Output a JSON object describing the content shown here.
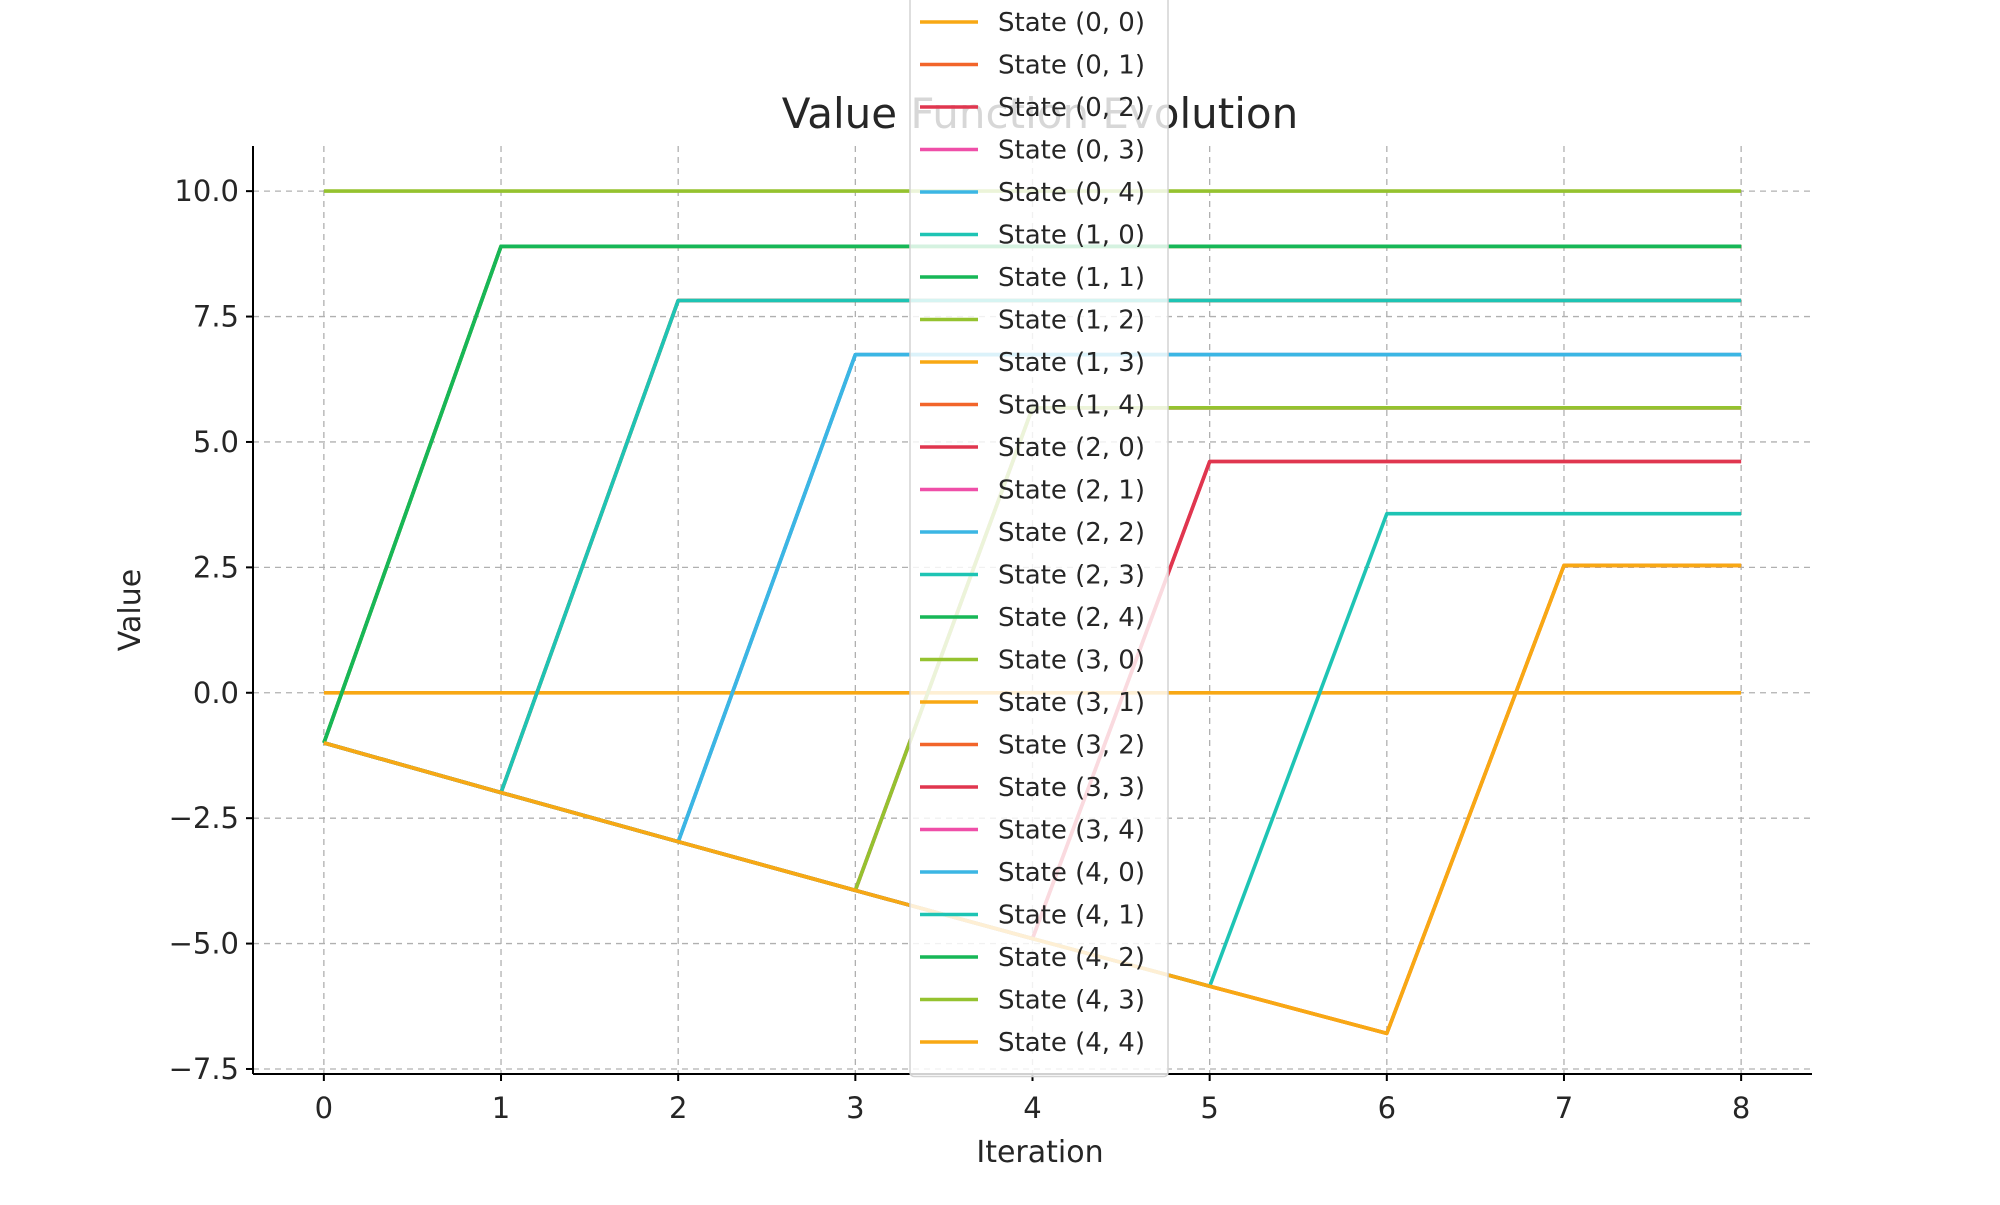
{
  "chart_data": {
    "type": "line",
    "title": "Value Function Evolution",
    "xlabel": "Iteration",
    "ylabel": "Value",
    "xlim": [
      -0.4,
      8.4
    ],
    "ylim": [
      -7.6,
      10.9
    ],
    "xticks": [
      0,
      1,
      2,
      3,
      4,
      5,
      6,
      7,
      8
    ],
    "xtick_labels": [
      "0",
      "1",
      "2",
      "3",
      "4",
      "5",
      "6",
      "7",
      "8"
    ],
    "yticks": [
      -7.5,
      -5.0,
      -2.5,
      0.0,
      2.5,
      5.0,
      7.5,
      10.0
    ],
    "ytick_labels": [
      "−7.5",
      "−5.0",
      "−2.5",
      "0.0",
      "2.5",
      "5.0",
      "7.5",
      "10.0"
    ],
    "grid": true,
    "legend_position": "upper-center",
    "x": [
      0,
      1,
      2,
      3,
      4,
      5,
      6,
      7,
      8
    ],
    "series": [
      {
        "name": "State (0, 0)",
        "color": "#f8a814",
        "values": [
          0,
          0,
          0,
          0,
          0,
          0,
          0,
          0,
          0
        ]
      },
      {
        "name": "State (0, 1)",
        "color": "#f2652a",
        "values": [
          -1,
          8.9,
          8.9,
          8.9,
          8.9,
          8.9,
          8.9,
          8.9,
          8.9
        ]
      },
      {
        "name": "State (0, 2)",
        "color": "#e0364f",
        "values": [
          -1,
          -1.99,
          7.82,
          7.82,
          7.82,
          7.82,
          7.82,
          7.82,
          7.82
        ]
      },
      {
        "name": "State (0, 3)",
        "color": "#ef4fa8",
        "values": [
          -1,
          -1.99,
          -2.97,
          6.74,
          6.74,
          6.74,
          6.74,
          6.74,
          6.74
        ]
      },
      {
        "name": "State (0, 4)",
        "color": "#3bb6e4",
        "values": [
          -1,
          -1.99,
          -2.97,
          6.74,
          6.74,
          6.74,
          6.74,
          6.74,
          6.74
        ]
      },
      {
        "name": "State (1, 0)",
        "color": "#1ec4b4",
        "values": [
          -1,
          -1.99,
          7.82,
          7.82,
          7.82,
          7.82,
          7.82,
          7.82,
          7.82
        ]
      },
      {
        "name": "State (1, 1)",
        "color": "#17b757",
        "values": [
          -1,
          8.9,
          8.9,
          8.9,
          8.9,
          8.9,
          8.9,
          8.9,
          8.9
        ]
      },
      {
        "name": "State (1, 2)",
        "color": "#95c22f",
        "values": [
          10,
          10,
          10,
          10,
          10,
          10,
          10,
          10,
          10
        ]
      },
      {
        "name": "State (1, 3)",
        "color": "#f8a814",
        "values": [
          -1,
          8.9,
          8.9,
          8.9,
          8.9,
          8.9,
          8.9,
          8.9,
          8.9
        ]
      },
      {
        "name": "State (1, 4)",
        "color": "#f2652a",
        "values": [
          -1,
          -1.99,
          7.82,
          7.82,
          7.82,
          7.82,
          7.82,
          7.82,
          7.82
        ]
      },
      {
        "name": "State (2, 0)",
        "color": "#e0364f",
        "values": [
          -1,
          -1.99,
          -2.97,
          -3.94,
          -4.9,
          4.61,
          4.61,
          4.61,
          4.61
        ]
      },
      {
        "name": "State (2, 1)",
        "color": "#ef4fa8",
        "values": [
          -1,
          -1.99,
          -2.97,
          -3.94,
          5.68,
          5.68,
          5.68,
          5.68,
          5.68
        ]
      },
      {
        "name": "State (2, 2)",
        "color": "#3bb6e4",
        "values": [
          -1,
          -1.99,
          -2.97,
          6.74,
          6.74,
          6.74,
          6.74,
          6.74,
          6.74
        ]
      },
      {
        "name": "State (2, 3)",
        "color": "#1ec4b4",
        "values": [
          -1,
          -1.99,
          7.82,
          7.82,
          7.82,
          7.82,
          7.82,
          7.82,
          7.82
        ]
      },
      {
        "name": "State (2, 4)",
        "color": "#17b757",
        "values": [
          -1,
          8.9,
          8.9,
          8.9,
          8.9,
          8.9,
          8.9,
          8.9,
          8.9
        ]
      },
      {
        "name": "State (3, 0)",
        "color": "#95c22f",
        "values": [
          -1,
          -1.99,
          -2.97,
          -3.94,
          5.68,
          5.68,
          5.68,
          5.68,
          5.68
        ]
      },
      {
        "name": "State (3, 1)",
        "color": "#f8a814",
        "values": [
          -1,
          -1.99,
          -2.97,
          -3.94,
          -4.9,
          -5.85,
          -6.79,
          2.54,
          2.54
        ]
      },
      {
        "name": "State (3, 2)",
        "color": "#f2652a",
        "values": [
          -1,
          -1.99,
          -2.97,
          -3.94,
          -4.9,
          -5.85,
          -6.79,
          2.54,
          2.54
        ]
      },
      {
        "name": "State (3, 3)",
        "color": "#e0364f",
        "values": [
          -1,
          -1.99,
          -2.97,
          -3.94,
          -4.9,
          4.61,
          4.61,
          4.61,
          4.61
        ]
      },
      {
        "name": "State (3, 4)",
        "color": "#ef4fa8",
        "values": [
          -1,
          -1.99,
          -2.97,
          -3.94,
          5.68,
          5.68,
          5.68,
          5.68,
          5.68
        ]
      },
      {
        "name": "State (4, 0)",
        "color": "#3bb6e4",
        "values": [
          -1,
          -1.99,
          -2.97,
          6.74,
          6.74,
          6.74,
          6.74,
          6.74,
          6.74
        ]
      },
      {
        "name": "State (4, 1)",
        "color": "#1ec4b4",
        "values": [
          -1,
          -1.99,
          -2.97,
          -3.94,
          -4.9,
          -5.85,
          3.57,
          3.57,
          3.57
        ]
      },
      {
        "name": "State (4, 2)",
        "color": "#17b757",
        "values": [
          -1,
          8.9,
          8.9,
          8.9,
          8.9,
          8.9,
          8.9,
          8.9,
          8.9
        ]
      },
      {
        "name": "State (4, 3)",
        "color": "#95c22f",
        "values": [
          -1,
          -1.99,
          -2.97,
          -3.94,
          5.68,
          5.68,
          5.68,
          5.68,
          5.68
        ]
      },
      {
        "name": "State (4, 4)",
        "color": "#f8a814",
        "values": [
          -1,
          -1.99,
          -2.97,
          -3.94,
          -4.9,
          -5.85,
          -6.79,
          2.54,
          2.54
        ]
      }
    ]
  }
}
